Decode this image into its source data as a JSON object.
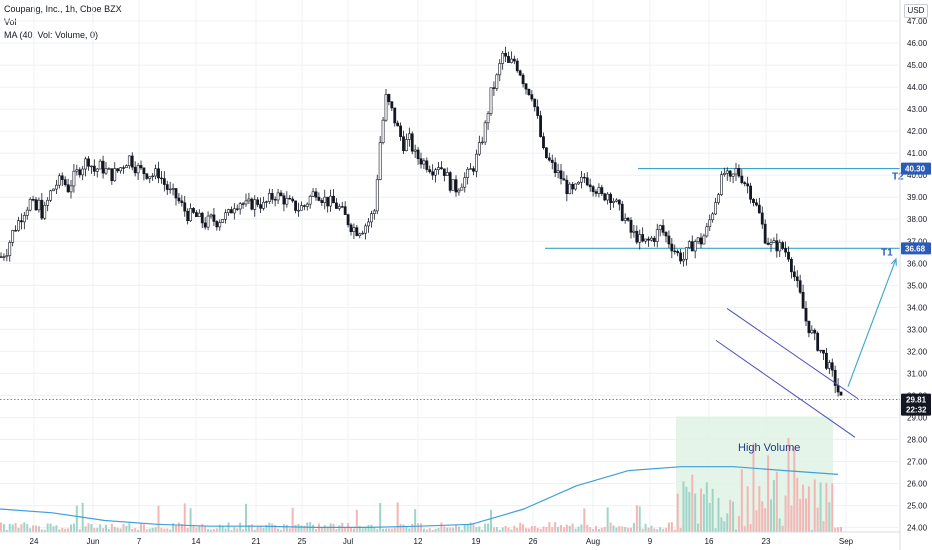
{
  "legend": {
    "title": "Coupang, Inc., 1h, Cboe BZX",
    "vol": "Vol",
    "ma": "MA (40, Vol: Volume, 0)"
  },
  "currency": "USD",
  "colors": {
    "grid": "#eef0f4",
    "candle": "#131722",
    "target_line": "#3aa6c8",
    "channel": "#4a4ec0",
    "badge": "#2a5bb8",
    "price_badge": "#131722",
    "volume_up": "#9fd5c8",
    "volume_down": "#f3b6b6",
    "volume_ma": "#3ea0d8",
    "highvol_zone": "#dff2e4"
  },
  "chart_data": {
    "type": "candlestick",
    "x_ticks": [
      "24",
      "Jun",
      "7",
      "14",
      "21",
      "25",
      "Jul",
      "12",
      "19",
      "26",
      "Aug",
      "9",
      "16",
      "23",
      "Sep"
    ],
    "y_ticks": [
      47.0,
      46.0,
      45.0,
      44.0,
      43.0,
      42.0,
      41.0,
      40.0,
      39.0,
      38.0,
      37.0,
      36.0,
      35.0,
      34.0,
      33.0,
      32.0,
      31.0,
      30.0,
      29.0,
      28.0,
      27.0,
      26.0,
      25.0,
      24.0
    ],
    "y_tick_labels": [
      "47.00",
      "46.00",
      "45.00",
      "44.00",
      "43.00",
      "42.00",
      "41.00",
      "40.00",
      "39.00",
      "38.00",
      "37.00",
      "36.00",
      "35.00",
      "34.00",
      "33.00",
      "32.00",
      "31.00",
      "30.00",
      "29.00",
      "28.00",
      "27.00",
      "26.00",
      "25.00",
      "24.00"
    ],
    "ylim": [
      23.8,
      47.5
    ],
    "path_x": [
      0,
      2,
      4,
      6,
      8,
      10,
      12,
      13,
      14,
      15,
      17,
      19,
      21,
      23,
      25,
      27,
      29,
      30,
      32,
      34,
      36,
      38,
      40,
      42,
      44,
      46,
      48,
      50,
      52,
      54,
      56,
      58,
      60,
      62,
      64,
      66,
      68,
      70,
      72,
      74,
      76,
      78,
      80,
      82,
      84,
      86,
      88,
      90,
      92,
      94,
      96,
      98,
      100,
      102,
      104,
      106,
      108,
      110,
      112,
      114,
      116,
      118,
      120,
      122,
      124,
      126,
      128,
      130,
      132,
      134,
      136,
      138,
      140,
      142,
      144,
      146,
      148,
      150,
      152,
      154,
      156,
      158,
      160,
      162,
      164,
      166,
      168,
      170,
      172,
      174,
      176,
      178,
      180,
      182,
      184,
      186,
      188,
      190,
      192,
      194,
      196,
      198,
      200,
      202,
      204,
      206,
      208,
      210,
      212,
      214,
      216,
      218,
      220,
      222,
      224,
      226,
      228,
      230,
      232,
      234,
      236,
      238,
      240,
      242,
      244,
      246,
      248,
      250,
      252,
      254,
      256,
      258,
      260,
      262,
      264,
      266,
      268,
      270,
      272,
      274,
      276,
      278,
      280,
      282,
      284,
      286,
      288
    ],
    "path_y": [
      36.3,
      36.6,
      37.4,
      37.9,
      38.4,
      38.8,
      38.4,
      38.7,
      38.3,
      38.4,
      39.2,
      39.6,
      39.8,
      39.4,
      39.9,
      40.3,
      40.6,
      40.7,
      40.2,
      40.4,
      40.2,
      40.0,
      40.2,
      40.5,
      40.8,
      40.4,
      40.2,
      40.1,
      40.0,
      40.1,
      39.6,
      39.2,
      39.0,
      38.6,
      38.2,
      38.2,
      38.0,
      37.8,
      38.0,
      37.9,
      38.1,
      38.2,
      38.7,
      38.8,
      38.6,
      38.7,
      38.8,
      38.6,
      38.9,
      39.1,
      39.0,
      38.8,
      38.6,
      38.5,
      38.6,
      39.0,
      39.3,
      39.0,
      38.8,
      38.7,
      38.5,
      38.1,
      37.7,
      37.5,
      37.6,
      37.9,
      38.4,
      41.5,
      43.5,
      42.9,
      42.1,
      41.4,
      41.6,
      40.9,
      40.7,
      40.5,
      40.3,
      40.5,
      40.2,
      39.6,
      39.4,
      39.7,
      40.0,
      40.4,
      41.2,
      42.2,
      43.7,
      44.4,
      45.5,
      45.0,
      45.2,
      44.7,
      44.0,
      43.7,
      42.5,
      41.0,
      40.6,
      40.2,
      39.9,
      39.4,
      39.2,
      39.5,
      39.9,
      39.7,
      39.4,
      39.0,
      39.2,
      38.9,
      38.4,
      38.0,
      37.4,
      37.2,
      36.9,
      37.0,
      37.2,
      37.6,
      37.2,
      36.8,
      36.4,
      36.2,
      36.7,
      37.0,
      37.0,
      37.5,
      38.4,
      39.4,
      40.1,
      39.7,
      40.2,
      39.9,
      39.5,
      38.9,
      38.2,
      37.2,
      36.8,
      36.8,
      36.7,
      36.4,
      35.4,
      34.5,
      33.4,
      32.8,
      32.3,
      31.8,
      31.2,
      30.6,
      29.8
    ],
    "path_x_note": "",
    "volume_ma": [
      0.06,
      0.05,
      0.03,
      0.02,
      0.015,
      0.015,
      0.012,
      0.012,
      0.015,
      0.02,
      0.06,
      0.12,
      0.16,
      0.17,
      0.17,
      0.16,
      0.15
    ],
    "price_now": "29.81",
    "countdown": "22:32",
    "levels": [
      {
        "label": "T2",
        "value": 40.3,
        "badge": "40.30"
      },
      {
        "label": "T1",
        "value": 36.68,
        "badge": "36.68"
      }
    ],
    "annotation": "High Volume"
  }
}
